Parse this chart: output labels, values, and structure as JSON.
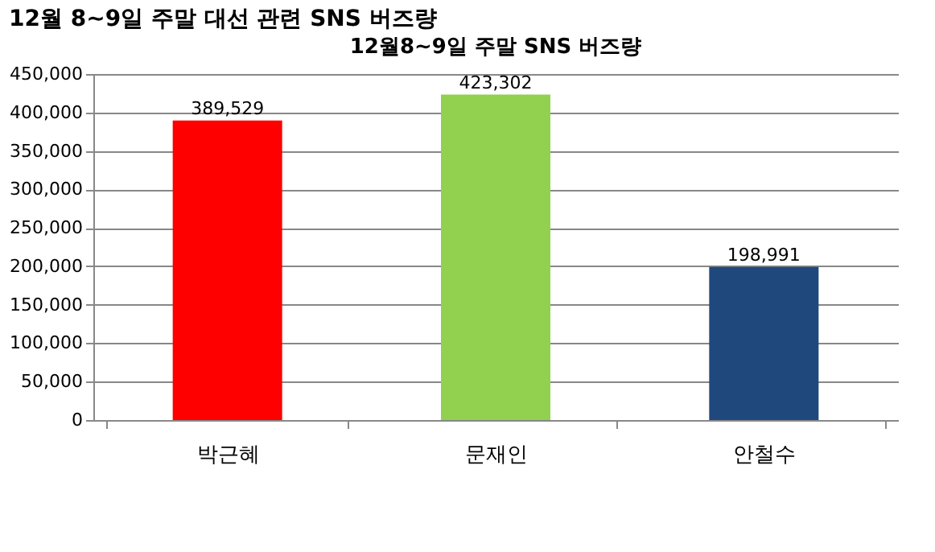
{
  "chart_data": {
    "type": "bar",
    "title": "12월 8~9일 주말 대선 관련 SNS 버즈량",
    "subtitle": "12월8~9일 주말 SNS 버즈량",
    "categories": [
      "박근혜",
      "문재인",
      "안철수"
    ],
    "values": [
      389529,
      423302,
      198991
    ],
    "value_labels": [
      "389,529",
      "423,302",
      "198,991"
    ],
    "colors": [
      "#ff0000",
      "#92d050",
      "#1f497d"
    ],
    "ylim": [
      0,
      450000
    ],
    "yticks": [
      0,
      {
        "value": 50000,
        "label": "50,000"
      },
      {
        "value": 100000,
        "label": "100,000"
      },
      {
        "value": 150000,
        "label": "150,000"
      },
      {
        "value": 200000,
        "label": "200,000"
      },
      {
        "value": 250000,
        "label": "250,000"
      },
      {
        "value": 300000,
        "label": "300,000"
      },
      {
        "value": 350000,
        "label": "350,000"
      },
      {
        "value": 400000,
        "label": "400,000"
      },
      {
        "value": 450000,
        "label": "450,000"
      }
    ],
    "grid": "y",
    "legend": false
  }
}
